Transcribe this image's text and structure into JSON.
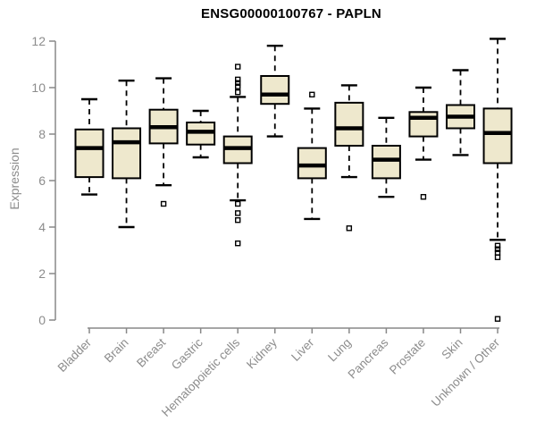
{
  "chart_data": {
    "type": "boxplot",
    "title": "ENSG00000100767 - PAPLN",
    "ylabel": "Expression",
    "xlabel": "",
    "ylim": [
      0,
      12
    ],
    "yticks": [
      0,
      2,
      4,
      6,
      8,
      10,
      12
    ],
    "grid": false,
    "legend": null,
    "categories": [
      "Bladder",
      "Brain",
      "Breast",
      "Gastric",
      "Hematopoietic cells",
      "Kidney",
      "Liver",
      "Lung",
      "Pancreas",
      "Prostate",
      "Skin",
      "Unknown / Other"
    ],
    "series": [
      {
        "category": "Bladder",
        "whisker_low": 5.4,
        "q1": 6.15,
        "median": 7.4,
        "q3": 8.2,
        "whisker_high": 9.5,
        "outliers": []
      },
      {
        "category": "Brain",
        "whisker_low": 4.0,
        "q1": 6.1,
        "median": 7.65,
        "q3": 8.25,
        "whisker_high": 10.3,
        "outliers": []
      },
      {
        "category": "Breast",
        "whisker_low": 5.8,
        "q1": 7.6,
        "median": 8.3,
        "q3": 9.05,
        "whisker_high": 10.4,
        "outliers": [
          5.0
        ]
      },
      {
        "category": "Gastric",
        "whisker_low": 7.0,
        "q1": 7.55,
        "median": 8.1,
        "q3": 8.5,
        "whisker_high": 9.0,
        "outliers": []
      },
      {
        "category": "Hematopoietic cells",
        "whisker_low": 5.15,
        "q1": 6.75,
        "median": 7.4,
        "q3": 7.9,
        "whisker_high": 9.6,
        "outliers": [
          10.9,
          10.35,
          10.2,
          10.05,
          9.8,
          5.0,
          4.6,
          4.3,
          3.3
        ]
      },
      {
        "category": "Kidney",
        "whisker_low": 7.9,
        "q1": 9.3,
        "median": 9.7,
        "q3": 10.5,
        "whisker_high": 11.8,
        "outliers": []
      },
      {
        "category": "Liver",
        "whisker_low": 4.35,
        "q1": 6.1,
        "median": 6.65,
        "q3": 7.4,
        "whisker_high": 9.1,
        "outliers": [
          9.7
        ]
      },
      {
        "category": "Lung",
        "whisker_low": 6.15,
        "q1": 7.5,
        "median": 8.25,
        "q3": 9.35,
        "whisker_high": 10.1,
        "outliers": [
          3.95
        ]
      },
      {
        "category": "Pancreas",
        "whisker_low": 5.3,
        "q1": 6.1,
        "median": 6.9,
        "q3": 7.5,
        "whisker_high": 8.7,
        "outliers": []
      },
      {
        "category": "Prostate",
        "whisker_low": 6.9,
        "q1": 7.9,
        "median": 8.7,
        "q3": 8.95,
        "whisker_high": 10.0,
        "outliers": [
          5.3
        ]
      },
      {
        "category": "Skin",
        "whisker_low": 7.1,
        "q1": 8.25,
        "median": 8.75,
        "q3": 9.25,
        "whisker_high": 10.75,
        "outliers": []
      },
      {
        "category": "Unknown / Other",
        "whisker_low": 3.45,
        "q1": 6.75,
        "median": 8.05,
        "q3": 9.1,
        "whisker_high": 12.1,
        "outliers": [
          3.2,
          3.05,
          2.9,
          2.7,
          0.05
        ]
      }
    ],
    "colors": {
      "box_fill": "#EEE8CD",
      "box_stroke": "#000000",
      "axis": "#888888",
      "tick_text": "#8C8C8C",
      "title_text": "#000000"
    }
  }
}
